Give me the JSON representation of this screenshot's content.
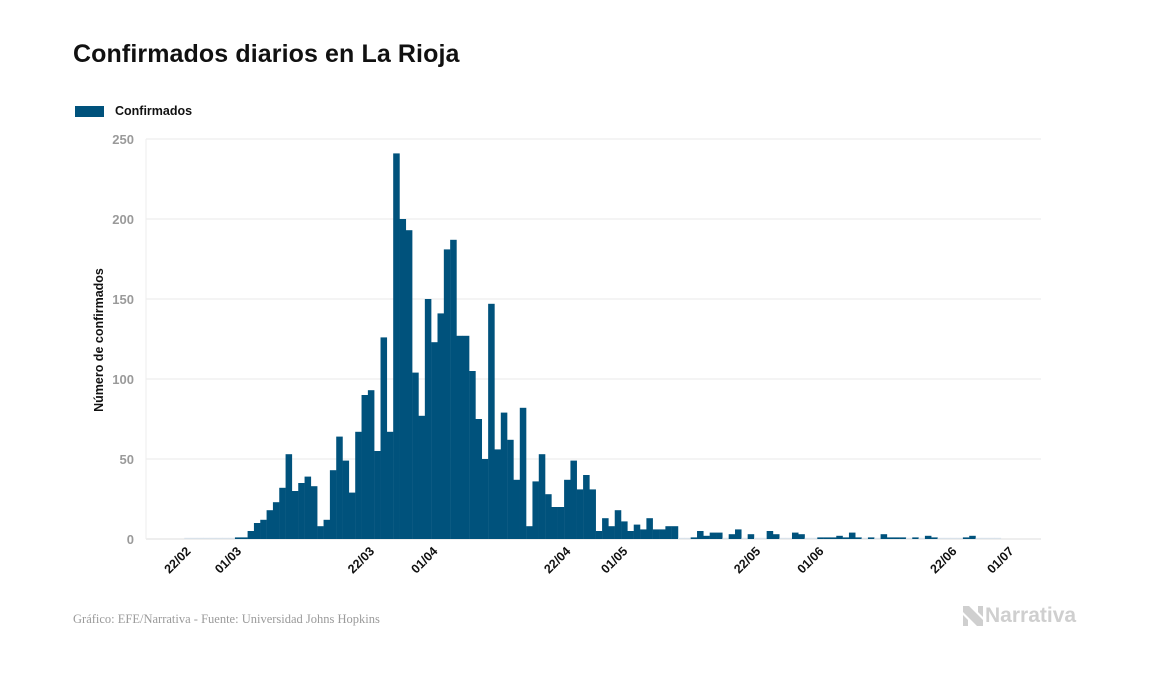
{
  "header": {
    "title": "Confirmados diarios en La Rioja"
  },
  "legend": {
    "items": [
      {
        "label": "Confirmados",
        "color": "#00527c"
      }
    ]
  },
  "footer": {
    "source": "Gráfico: EFE/Narrativa - Fuente: Universidad Johns Hopkins",
    "brand": "Narrativa",
    "brand_icon": "narrativa-logo-icon"
  },
  "colors": {
    "bar": "#00527c",
    "zero_bar": "#d9e2ea",
    "grid": "#e9e9e9",
    "brand": "#cfcfcf"
  },
  "chart_data": {
    "type": "bar",
    "title": "Confirmados diarios en La Rioja",
    "xlabel": "",
    "ylabel": "Número de confirmados",
    "ylim": [
      0,
      250
    ],
    "yticks": [
      0,
      50,
      100,
      150,
      200,
      250
    ],
    "grid": true,
    "legend_position": "top-left",
    "start_date": "22/02",
    "xticks": [
      {
        "label": "22/02",
        "index": 0
      },
      {
        "label": "01/03",
        "index": 8
      },
      {
        "label": "22/03",
        "index": 29
      },
      {
        "label": "01/04",
        "index": 39
      },
      {
        "label": "22/04",
        "index": 60
      },
      {
        "label": "01/05",
        "index": 69
      },
      {
        "label": "22/05",
        "index": 90
      },
      {
        "label": "01/06",
        "index": 100
      },
      {
        "label": "22/06",
        "index": 121
      },
      {
        "label": "01/07",
        "index": 130
      }
    ],
    "series": [
      {
        "name": "Confirmados",
        "values": [
          0,
          0,
          0,
          0,
          0,
          0,
          0,
          0,
          1,
          1,
          5,
          10,
          12,
          18,
          23,
          32,
          53,
          30,
          35,
          39,
          33,
          8,
          12,
          43,
          64,
          49,
          29,
          67,
          90,
          93,
          55,
          126,
          67,
          241,
          200,
          193,
          104,
          77,
          150,
          123,
          141,
          181,
          187,
          127,
          127,
          105,
          75,
          50,
          147,
          56,
          79,
          62,
          37,
          82,
          8,
          36,
          53,
          28,
          20,
          20,
          37,
          49,
          31,
          40,
          31,
          5,
          13,
          8,
          18,
          11,
          5,
          9,
          6,
          13,
          6,
          6,
          8,
          8,
          0,
          0,
          1,
          5,
          2,
          4,
          4,
          0,
          3,
          6,
          0,
          3,
          0,
          0,
          5,
          3,
          0,
          0,
          4,
          3,
          0,
          0,
          1,
          1,
          1,
          2,
          1,
          4,
          1,
          0,
          1,
          0,
          3,
          1,
          1,
          1,
          0,
          1,
          0,
          2,
          1,
          0,
          0,
          0,
          0,
          1,
          2,
          0,
          0,
          0,
          0
        ]
      }
    ]
  }
}
